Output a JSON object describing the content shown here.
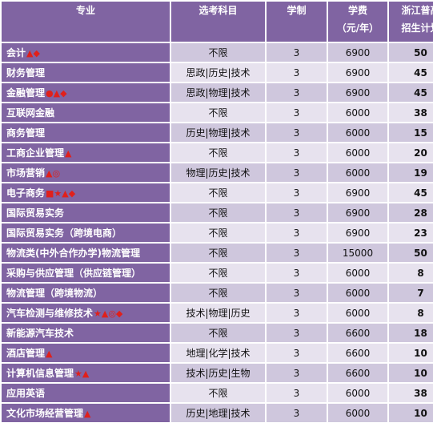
{
  "header": {
    "major": "专业",
    "subjects": "选考科目",
    "years": "学制",
    "fee_line1": "学费",
    "fee_line2": "（元/年）",
    "plan_line1": "浙江普高",
    "plan_line2": "招生计划"
  },
  "marker_colors": {
    "accent": "#e0201b",
    "header_bg": "#8064a2"
  },
  "rows": [
    {
      "major": "会计",
      "marks": "▲◆",
      "subjects": "不限",
      "years": "3",
      "fee": "6900",
      "plan": "50"
    },
    {
      "major": "财务管理",
      "marks": "",
      "subjects": "思政|历史|技术",
      "years": "3",
      "fee": "6900",
      "plan": "45"
    },
    {
      "major": "金融管理",
      "marks": "●▲◆",
      "subjects": "思政|物理|技术",
      "years": "3",
      "fee": "6900",
      "plan": "45"
    },
    {
      "major": "互联网金融",
      "marks": "",
      "subjects": "不限",
      "years": "3",
      "fee": "6000",
      "plan": "38"
    },
    {
      "major": "商务管理",
      "marks": "",
      "subjects": "历史|物理|技术",
      "years": "3",
      "fee": "6000",
      "plan": "15"
    },
    {
      "major": "工商企业管理",
      "marks": "▲",
      "subjects": "不限",
      "years": "3",
      "fee": "6000",
      "plan": "20"
    },
    {
      "major": "市场营销",
      "marks": "▲◎",
      "subjects": "物理|历史|技术",
      "years": "3",
      "fee": "6000",
      "plan": "19"
    },
    {
      "major": "电子商务",
      "marks": "■★▲◆",
      "subjects": "不限",
      "years": "3",
      "fee": "6900",
      "plan": "45"
    },
    {
      "major": "国际贸易实务",
      "marks": "",
      "subjects": "不限",
      "years": "3",
      "fee": "6900",
      "plan": "28"
    },
    {
      "major": "国际贸易实务（跨境电商）",
      "marks": "",
      "subjects": "不限",
      "years": "3",
      "fee": "6900",
      "plan": "23"
    },
    {
      "major": "物流类(中外合作办学)物流管理",
      "marks": "",
      "subjects": "不限",
      "years": "3",
      "fee": "15000",
      "plan": "50"
    },
    {
      "major": "采购与供应管理（供应链管理）",
      "marks": "",
      "subjects": "不限",
      "years": "3",
      "fee": "6000",
      "plan": "8"
    },
    {
      "major": "物流管理（跨境物流）",
      "marks": "",
      "subjects": "不限",
      "years": "3",
      "fee": "6000",
      "plan": "7"
    },
    {
      "major": "汽车检测与维修技术",
      "marks": "★▲◎◆",
      "subjects": "技术|物理|历史",
      "years": "3",
      "fee": "6000",
      "plan": "8"
    },
    {
      "major": "新能源汽车技术",
      "marks": "",
      "subjects": "不限",
      "years": "3",
      "fee": "6600",
      "plan": "18"
    },
    {
      "major": "酒店管理",
      "marks": "▲",
      "subjects": "地理|化学|技术",
      "years": "3",
      "fee": "6600",
      "plan": "10"
    },
    {
      "major": "计算机信息管理",
      "marks": "★▲",
      "subjects": "技术|历史|生物",
      "years": "3",
      "fee": "6600",
      "plan": "10"
    },
    {
      "major": "应用英语",
      "marks": "",
      "subjects": "不限",
      "years": "3",
      "fee": "6000",
      "plan": "38"
    },
    {
      "major": "文化市场经营管理",
      "marks": "▲",
      "subjects": "历史|地理|技术",
      "years": "3",
      "fee": "6000",
      "plan": "10"
    }
  ]
}
